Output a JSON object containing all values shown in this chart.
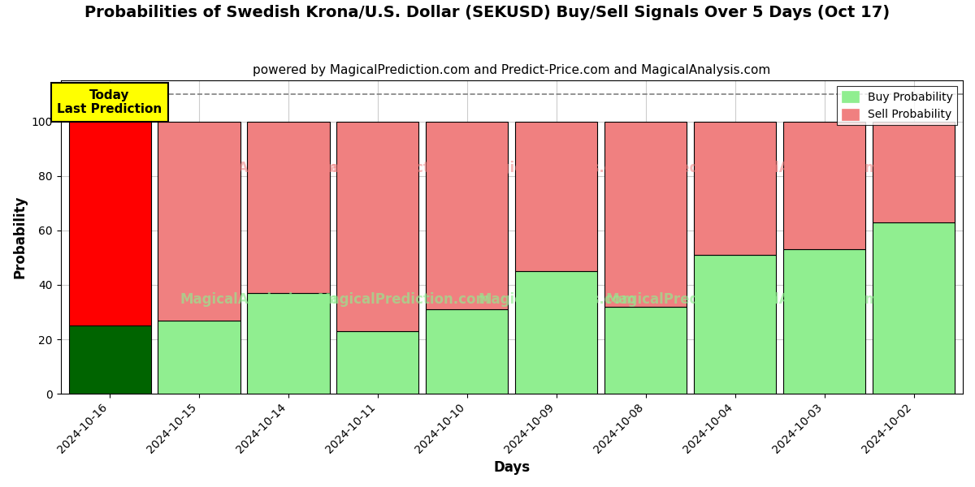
{
  "title": "Probabilities of Swedish Krona/U.S. Dollar (SEKUSD) Buy/Sell Signals Over 5 Days (Oct 17)",
  "subtitle": "powered by MagicalPrediction.com and Predict-Price.com and MagicalAnalysis.com",
  "xlabel": "Days",
  "ylabel": "Probability",
  "categories": [
    "2024-10-16",
    "2024-10-15",
    "2024-10-14",
    "2024-10-11",
    "2024-10-10",
    "2024-10-09",
    "2024-10-08",
    "2024-10-04",
    "2024-10-03",
    "2024-10-02"
  ],
  "buy_values": [
    25,
    27,
    37,
    23,
    31,
    45,
    32,
    51,
    53,
    63
  ],
  "sell_values": [
    75,
    73,
    63,
    77,
    69,
    55,
    68,
    49,
    47,
    37
  ],
  "buy_colors": [
    "#006400",
    "#90EE90",
    "#90EE90",
    "#90EE90",
    "#90EE90",
    "#90EE90",
    "#90EE90",
    "#90EE90",
    "#90EE90",
    "#90EE90"
  ],
  "sell_colors": [
    "#FF0000",
    "#F08080",
    "#F08080",
    "#F08080",
    "#F08080",
    "#F08080",
    "#F08080",
    "#F08080",
    "#F08080",
    "#F08080"
  ],
  "legend_buy_color": "#90EE90",
  "legend_sell_color": "#F08080",
  "today_box_color": "#FFFF00",
  "today_label": "Today\nLast Prediction",
  "ylim": [
    0,
    115
  ],
  "dashed_line_y": 110,
  "background_color": "#ffffff",
  "grid_color": "#cccccc",
  "title_fontsize": 14,
  "subtitle_fontsize": 11,
  "axis_label_fontsize": 12,
  "tick_fontsize": 10,
  "bar_width": 0.92
}
